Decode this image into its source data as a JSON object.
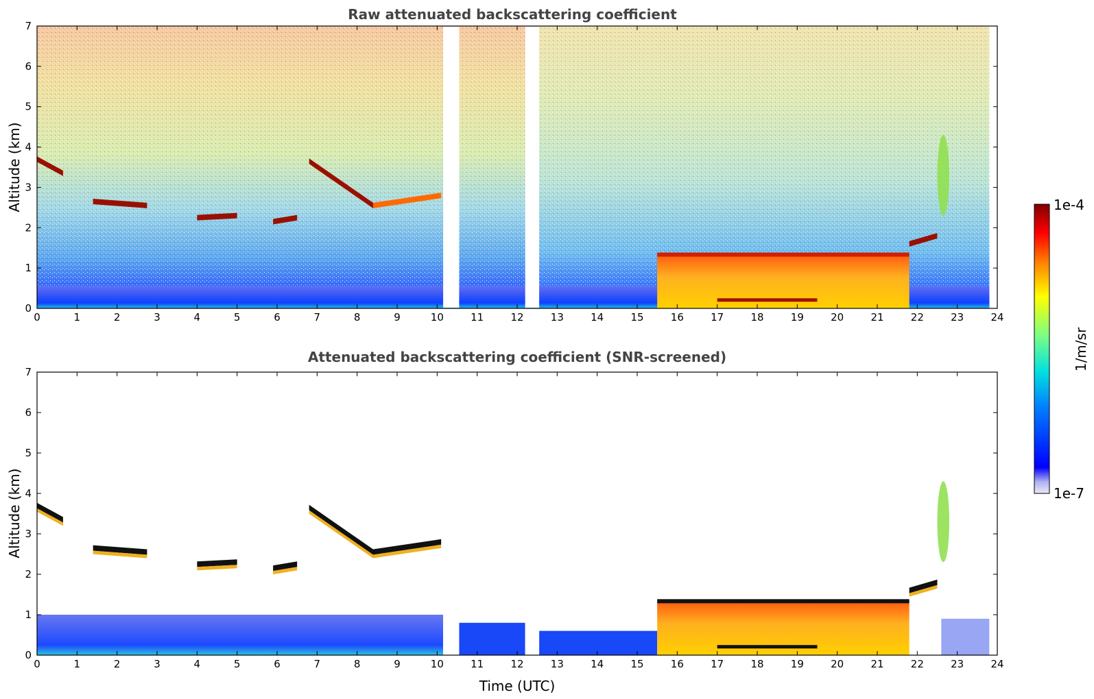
{
  "chart_data": [
    {
      "type": "heatmap",
      "title": "Raw attenuated backscattering coefficient",
      "xlabel": "",
      "ylabel": "Altitude (km)",
      "xlim": [
        0,
        24
      ],
      "ylim": [
        0,
        7
      ],
      "x_ticks": [
        "0",
        "1",
        "2",
        "3",
        "4",
        "5",
        "6",
        "7",
        "8",
        "9",
        "10",
        "11",
        "12",
        "13",
        "14",
        "15",
        "16",
        "17",
        "18",
        "19",
        "20",
        "21",
        "22",
        "23",
        "24"
      ],
      "y_ticks": [
        "0",
        "1",
        "2",
        "3",
        "4",
        "5",
        "6",
        "7"
      ],
      "data_gaps_utc": [
        [
          10.15,
          10.55
        ],
        [
          12.2,
          12.55
        ]
      ],
      "features": [
        {
          "kind": "cloud-layer",
          "t_start": 0.0,
          "t_end": 0.65,
          "alt_start": 3.7,
          "alt_end": 3.35,
          "level": "max"
        },
        {
          "kind": "cloud-layer",
          "t_start": 1.4,
          "t_end": 2.75,
          "alt_start": 2.65,
          "alt_end": 2.55,
          "level": "max"
        },
        {
          "kind": "cloud-layer",
          "t_start": 4.0,
          "t_end": 5.0,
          "alt_start": 2.25,
          "alt_end": 2.3,
          "level": "max"
        },
        {
          "kind": "cloud-layer",
          "t_start": 5.9,
          "t_end": 6.5,
          "alt_start": 2.15,
          "alt_end": 2.25,
          "level": "max"
        },
        {
          "kind": "cloud-layer",
          "t_start": 6.8,
          "t_end": 8.4,
          "alt_start": 3.65,
          "alt_end": 2.55,
          "level": "max"
        },
        {
          "kind": "cloud-layer",
          "t_start": 8.4,
          "t_end": 10.1,
          "alt_start": 2.55,
          "alt_end": 2.8,
          "level": "high"
        },
        {
          "kind": "boundary-layer",
          "t_start": 15.5,
          "t_end": 21.8,
          "alt_top": 1.3,
          "level": "high"
        },
        {
          "kind": "cloud-layer",
          "t_start": 21.8,
          "t_end": 22.5,
          "alt_start": 1.6,
          "alt_end": 1.8,
          "level": "max"
        },
        {
          "kind": "plume",
          "t_start": 22.5,
          "t_end": 22.8,
          "alt_bottom": 2.3,
          "alt_top": 4.3,
          "level": "mid"
        }
      ]
    },
    {
      "type": "heatmap",
      "title": "Attenuated backscattering coefficient (SNR-screened)",
      "xlabel": "Time (UTC)",
      "ylabel": "Altitude (km)",
      "xlim": [
        0,
        24
      ],
      "ylim": [
        0,
        7
      ],
      "x_ticks": [
        "0",
        "1",
        "2",
        "3",
        "4",
        "5",
        "6",
        "7",
        "8",
        "9",
        "10",
        "11",
        "12",
        "13",
        "14",
        "15",
        "16",
        "17",
        "18",
        "19",
        "20",
        "21",
        "22",
        "23",
        "24"
      ],
      "y_ticks": [
        "0",
        "1",
        "2",
        "3",
        "4",
        "5",
        "6",
        "7"
      ],
      "data_gaps_utc": [
        [
          10.15,
          10.55
        ],
        [
          12.2,
          12.55
        ]
      ]
    }
  ],
  "colorbar": {
    "label": "1/m/sr",
    "min_label": "1e-7",
    "max_label": "1e-4",
    "colormap": "jet"
  }
}
